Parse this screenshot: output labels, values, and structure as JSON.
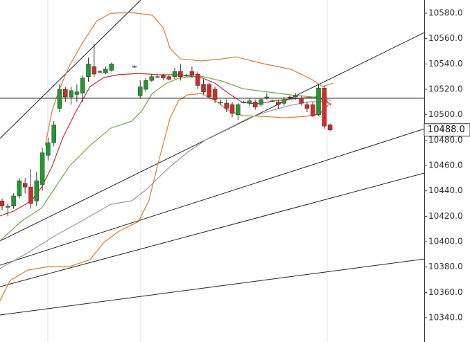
{
  "chart_data": {
    "type": "candlestick",
    "ylim": [
      10320.9,
      10590.4
    ],
    "xlim": [
      -0.36,
      73.37
    ],
    "yticks": [
      {
        "value": 10340,
        "label": "10340.0"
      },
      {
        "value": 10360,
        "label": "10360.0"
      },
      {
        "value": 10380,
        "label": "10380.0"
      },
      {
        "value": 10400,
        "label": "10400.0"
      },
      {
        "value": 10420,
        "label": "10420.0"
      },
      {
        "value": 10440,
        "label": "10440.0"
      },
      {
        "value": 10460,
        "label": "10460.0"
      },
      {
        "value": 10480,
        "label": "10480.0"
      },
      {
        "value": 10500,
        "label": "10500.0"
      },
      {
        "value": 10520,
        "label": "10520.0"
      },
      {
        "value": 10540,
        "label": "10540.0"
      },
      {
        "value": 10560,
        "label": "10560.0"
      },
      {
        "value": 10580,
        "label": "10580.0"
      }
    ],
    "xgrid": [
      7.95,
      24.1,
      56.5
    ],
    "up_color": "#1f9a2e",
    "down_color": "#d42a2a",
    "categories": [
      null,
      null,
      null,
      null,
      null,
      null,
      null,
      null,
      null,
      null,
      null,
      null,
      null,
      null,
      null,
      null,
      null,
      null,
      null,
      null,
      null,
      null,
      null,
      null,
      null,
      null,
      null,
      null,
      null,
      null,
      null,
      null,
      null,
      null,
      null,
      null,
      null,
      null,
      null,
      null,
      null,
      null,
      null,
      null,
      null,
      null,
      null,
      null,
      null,
      null,
      null,
      null,
      null,
      null,
      null,
      null,
      null,
      null
    ],
    "open": [
      10432,
      10427,
      10428,
      10436,
      10446,
      10443,
      10432,
      10445,
      10468,
      10478,
      10505,
      10520,
      10514,
      10516,
      10517,
      10530,
      10538,
      10534,
      10533,
      10535,
      null,
      null,
      null,
      10538,
      10515,
      10520,
      10527,
      10530,
      10531,
      10530,
      10530,
      10534,
      10531,
      10534,
      10532,
      10524,
      10524,
      10520,
      10510,
      10509,
      10508,
      10500,
      10510,
      10509,
      10510,
      10508,
      10514,
      10511,
      10510,
      10509,
      10514,
      10514,
      10513,
      10508,
      10508,
      10500,
      10521,
      10492
    ],
    "close": [
      10428,
      10428,
      10436,
      10448,
      10443,
      10430,
      10448,
      10470,
      10478,
      10492,
      10520,
      10514,
      10519,
      10518,
      10529,
      10540,
      10532,
      10534,
      10536,
      10540,
      null,
      null,
      null,
      10538,
      10522,
      10527,
      10530,
      10530,
      10529,
      10528,
      10534,
      10530,
      10531,
      10531,
      10523,
      10518,
      10514,
      10512,
      10510,
      10505,
      10501,
      10508,
      10510,
      10511,
      10506,
      10512,
      10514,
      10511,
      10508,
      10512,
      10514,
      10515,
      10509,
      10505,
      10499,
      10521,
      10491,
      10488
    ],
    "high": [
      10434,
      10430,
      10438,
      10450,
      10450,
      10457,
      10455,
      10474,
      10482,
      10495,
      10524,
      10522,
      10522,
      10524,
      10531,
      10545,
      10556,
      10535,
      10538,
      10541,
      null,
      null,
      null,
      10539,
      10527,
      10529,
      10532,
      10531,
      10532,
      10531,
      10537,
      10540,
      10532,
      10538,
      10534,
      10528,
      10525,
      10522,
      10512,
      10512,
      10510,
      10509,
      10511,
      10513,
      10512,
      10513,
      10517,
      10512,
      10512,
      10514,
      10515,
      10517,
      10515,
      10510,
      10510,
      10524,
      10523,
      10493
    ],
    "low": [
      10425,
      10420,
      10426,
      10434,
      10438,
      10426,
      10428,
      10440,
      10464,
      10475,
      10502,
      10510,
      10508,
      10510,
      10510,
      10526,
      10530,
      10533,
      10532,
      10534,
      null,
      null,
      null,
      10537,
      10513,
      10518,
      10526,
      10529,
      10527,
      10527,
      10528,
      10527,
      10530,
      10529,
      10520,
      10516,
      10513,
      10509,
      10508,
      10502,
      10498,
      10496,
      10509,
      10507,
      10504,
      10506,
      10512,
      10510,
      10505,
      10507,
      10513,
      10512,
      10507,
      10502,
      10498,
      10499,
      10489,
      10487
    ],
    "series": [
      {
        "color": "#e07b28",
        "x": [
          7.5,
          8.7,
          9.9,
          11.7,
          14.1,
          16.5,
          18.9,
          22.5,
          26.1,
          28.0,
          29.2,
          31.0,
          34.6,
          38.2,
          40.6,
          45.4,
          50.2,
          53.9,
          55.7,
          57.5
        ],
        "values": [
          10475.8,
          10503.1,
          10519.4,
          10538.5,
          10557.6,
          10574.0,
          10580,
          10580.5,
          10578.4,
          10568.5,
          10552.2,
          10544.0,
          10542.4,
          10544.0,
          10545.6,
          10540.2,
          10535.8,
          10527.6,
          10522.2,
          10524.9
        ]
      },
      {
        "color": "#e07b28",
        "x": [
          -0.4,
          1.4,
          4.5,
          8.1,
          11.7,
          15.3,
          17.7,
          20.1,
          23.7,
          25.5,
          27.3,
          29.2,
          30.7,
          32.2,
          34.6,
          37.0,
          39.4,
          41.8,
          45.4,
          49.0,
          52.7,
          55.1,
          56.9
        ],
        "values": [
          10353.1,
          10369.4,
          10377.6,
          10380.3,
          10380.3,
          10385.8,
          10399.4,
          10407.6,
          10415.8,
          10432.2,
          10464.9,
          10497.6,
          10511.3,
          10515.6,
          10516.7,
          10511.3,
          10503.1,
          10499.3,
          10498.7,
          10497.6,
          10498.7,
          10500.4,
          10508.5
        ]
      },
      {
        "color": "#d42a2a",
        "x": [
          -0.4,
          2.0,
          5.1,
          6.9,
          8.7,
          10.5,
          12.9,
          15.3,
          17.7,
          20.1,
          23.7,
          27.3,
          31.0,
          34.6,
          37.0,
          39.4,
          41.8,
          44.2,
          47.8,
          51.4,
          54.5,
          56.3,
          57.2
        ],
        "values": [
          10420.2,
          10424.0,
          10432.2,
          10443.1,
          10459.4,
          10481.3,
          10503.1,
          10522.2,
          10529.3,
          10531.5,
          10532.5,
          10531.5,
          10531.5,
          10529.3,
          10524.9,
          10516.7,
          10509.6,
          10508.5,
          10511.3,
          10512.9,
          10514.0,
          10511.3,
          10507.4
        ]
      },
      {
        "color": "#6cab3c",
        "x": [
          -0.4,
          3.3,
          6.9,
          9.3,
          11.7,
          15.3,
          18.9,
          22.5,
          24.3,
          26.1,
          28.6,
          31.0,
          34.6,
          38.2,
          41.8,
          45.4,
          50.2,
          53.9,
          55.7,
          57.2
        ],
        "values": [
          10400.5,
          10415.8,
          10426.7,
          10443.1,
          10459.4,
          10475.8,
          10489.4,
          10494.9,
          10503.1,
          10516.7,
          10524.9,
          10529.3,
          10530.4,
          10526.5,
          10520.5,
          10518.4,
          10515.6,
          10514.0,
          10512.4,
          10511.3
        ]
      },
      {
        "color": "#999999",
        "x": [
          -0.4,
          4.5,
          9.3,
          14.1,
          18.9,
          22.5,
          24.9,
          28.6,
          32.2,
          35.8,
          39.4,
          43.0,
          46.6,
          50.2,
          53.3,
          55.7,
          57.2
        ],
        "values": [
          10378.7,
          10391.3,
          10404.9,
          10416.9,
          10429.4,
          10432.2,
          10440.4,
          10456.7,
          10470.4,
          10481.3,
          10489.4,
          10497.6,
          10503.1,
          10507.4,
          10510.2,
          10510.2,
          10508.5
        ]
      }
    ],
    "trend_lines": [
      {
        "color": "#222222",
        "x": [
          -0.36,
          24.1
        ],
        "values": [
          10481.3,
          10590.4
        ]
      },
      {
        "color": "#222222",
        "x": [
          -0.36,
          73.37
        ],
        "values": [
          10400.5,
          10564.7
        ]
      },
      {
        "color": "#222222",
        "x": [
          -0.36,
          73.37
        ],
        "values": [
          10381.4,
          10488.9
        ]
      },
      {
        "color": "#222222",
        "x": [
          -0.36,
          73.37
        ],
        "values": [
          10364.5,
          10454.0
        ]
      },
      {
        "color": "#222222",
        "x": [
          -0.36,
          73.37
        ],
        "values": [
          10342.2,
          10386.3
        ]
      }
    ],
    "hline": 10513,
    "last_price": {
      "value": 10488,
      "label": "10488.0"
    }
  }
}
